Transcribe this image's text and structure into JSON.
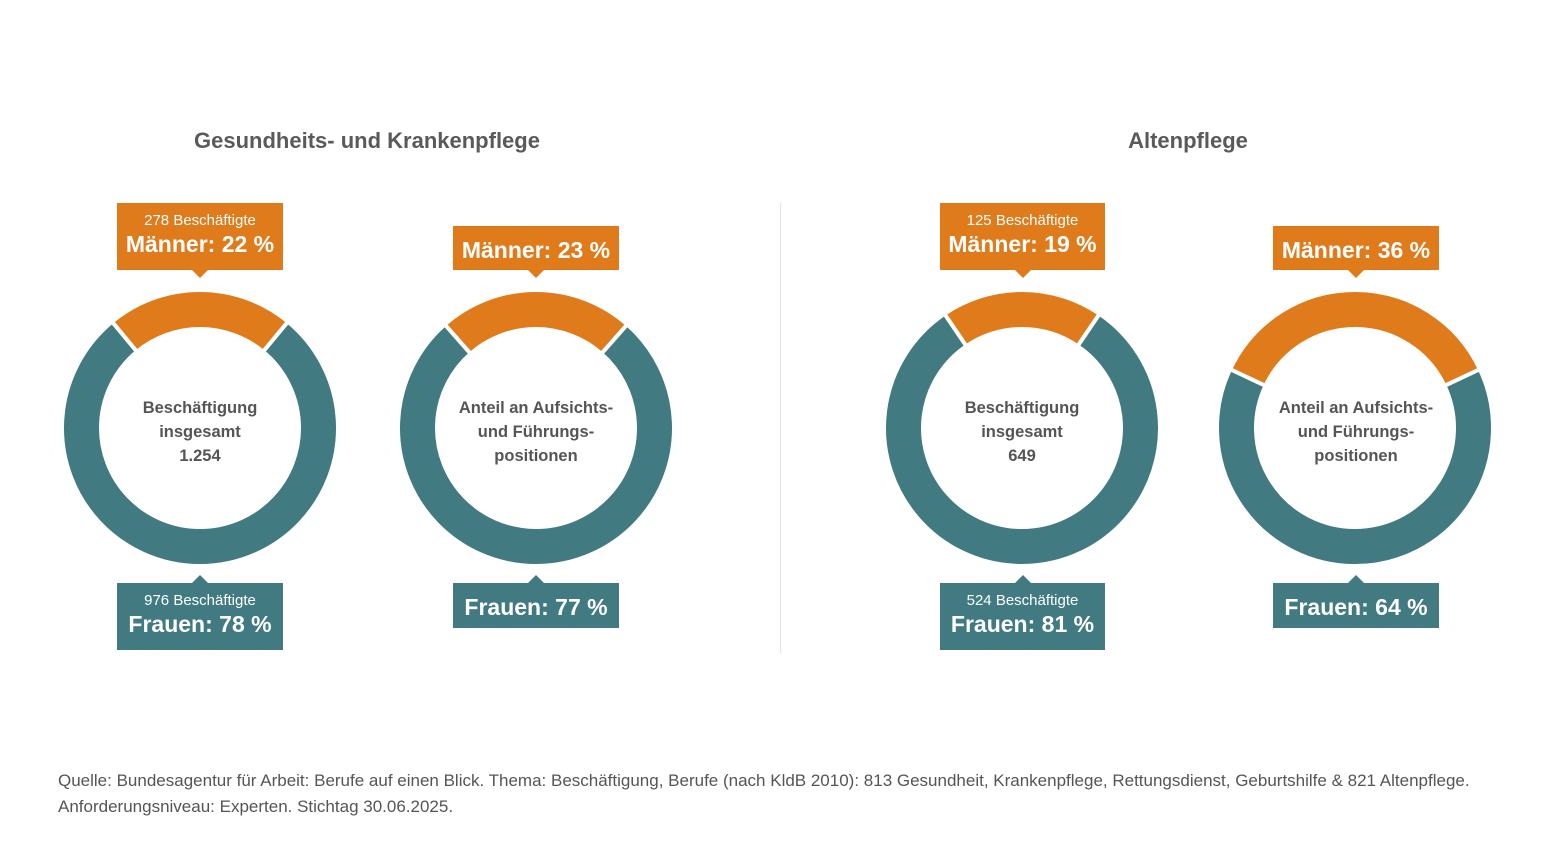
{
  "groups": [
    {
      "title": "Gesundheits- und Krankenpflege"
    },
    {
      "title": "Altenpflege"
    }
  ],
  "colors": {
    "men": "#e07b1b",
    "women": "#427a82"
  },
  "chart_data": [
    {
      "type": "pie",
      "group": "Gesundheits- und Krankenpflege",
      "center_label": [
        "Beschäftigung",
        "insgesamt",
        "1.254"
      ],
      "slices": [
        {
          "name": "Männer",
          "value": 22,
          "count": 278
        },
        {
          "name": "Frauen",
          "value": 78,
          "count": 976
        }
      ],
      "men_count_text": "278 Beschäftigte",
      "men_label": "Männer: 22 %",
      "women_count_text": "976 Beschäftigte",
      "women_label": "Frauen: 78 %"
    },
    {
      "type": "pie",
      "group": "Gesundheits- und Krankenpflege",
      "center_label": [
        "Anteil an Aufsichts-",
        "und Führungs-",
        "positionen"
      ],
      "slices": [
        {
          "name": "Männer",
          "value": 23
        },
        {
          "name": "Frauen",
          "value": 77
        }
      ],
      "men_label": "Männer: 23 %",
      "women_label": "Frauen: 77 %"
    },
    {
      "type": "pie",
      "group": "Altenpflege",
      "center_label": [
        "Beschäftigung",
        "insgesamt",
        "649"
      ],
      "slices": [
        {
          "name": "Männer",
          "value": 19,
          "count": 125
        },
        {
          "name": "Frauen",
          "value": 81,
          "count": 524
        }
      ],
      "men_count_text": "125 Beschäftigte",
      "men_label": "Männer: 19 %",
      "women_count_text": "524 Beschäftigte",
      "women_label": "Frauen: 81 %"
    },
    {
      "type": "pie",
      "group": "Altenpflege",
      "center_label": [
        "Anteil an Aufsichts-",
        "und Führungs-",
        "positionen"
      ],
      "slices": [
        {
          "name": "Männer",
          "value": 36
        },
        {
          "name": "Frauen",
          "value": 64
        }
      ],
      "men_label": "Männer: 36 %",
      "women_label": "Frauen: 64 %"
    }
  ],
  "source": "Quelle: Bundesagentur für Arbeit: Berufe auf einen Blick. Thema: Beschäftigung, Berufe (nach KldB 2010): 813 Gesundheit, Krankenpflege, Rettungsdienst, Geburtshilfe & 821 Altenpflege. Anforderungsniveau: Experten. Stichtag 30.06.2025."
}
